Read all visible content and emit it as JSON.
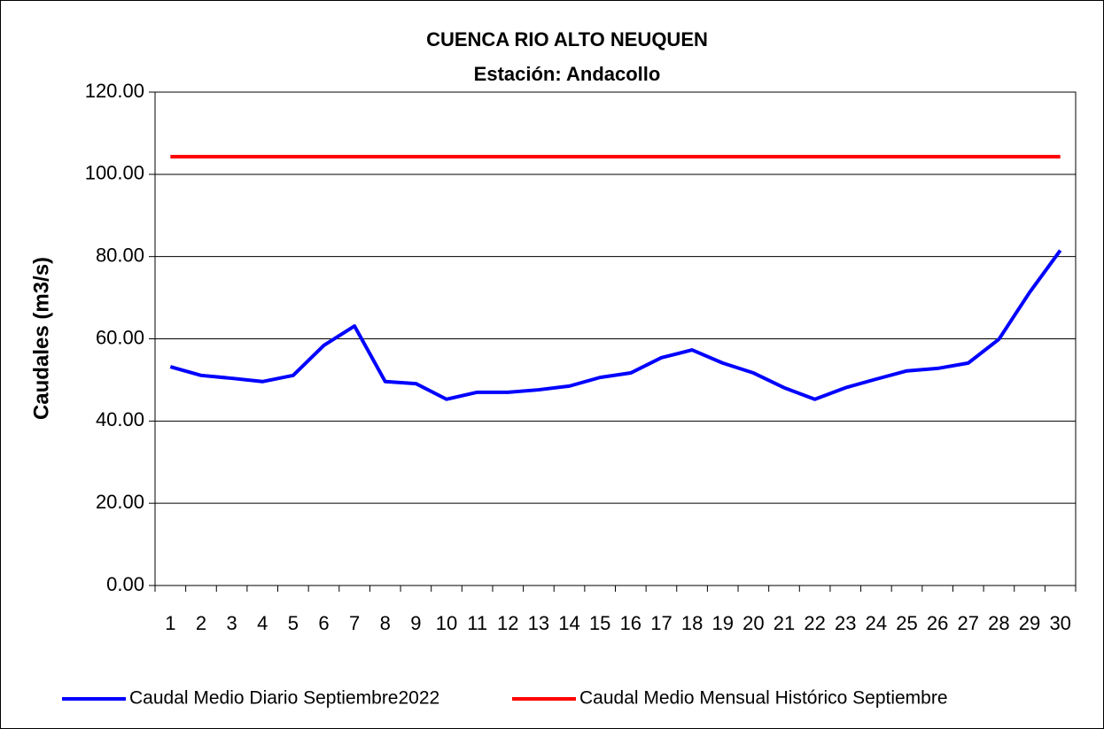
{
  "chart_data": {
    "type": "line",
    "title": "CUENCA RIO ALTO NEUQUEN",
    "subtitle": "Estación: Andacollo",
    "y_label": "Caudales (m3/s)",
    "categories": [
      "1",
      "2",
      "3",
      "4",
      "5",
      "6",
      "7",
      "8",
      "9",
      "10",
      "11",
      "12",
      "13",
      "14",
      "15",
      "16",
      "17",
      "18",
      "19",
      "20",
      "21",
      "22",
      "23",
      "24",
      "25",
      "26",
      "27",
      "28",
      "29",
      "30"
    ],
    "series": [
      {
        "name": "Caudal Medio Diario Septiembre2022",
        "color": "#0000ff",
        "values": [
          53.2,
          51.1,
          50.4,
          49.6,
          51.1,
          58.4,
          63.1,
          49.6,
          49.1,
          45.3,
          47.0,
          47.0,
          47.6,
          48.5,
          50.6,
          51.7,
          55.4,
          57.3,
          54.1,
          51.7,
          48.1,
          45.3,
          48.1,
          50.2,
          52.2,
          52.8,
          54.1,
          59.9,
          71.3,
          81.5
        ]
      },
      {
        "name": "Caudal Medio Mensual Histórico Septiembre",
        "color": "#ff0000",
        "values": [
          104.3,
          104.3,
          104.3,
          104.3,
          104.3,
          104.3,
          104.3,
          104.3,
          104.3,
          104.3,
          104.3,
          104.3,
          104.3,
          104.3,
          104.3,
          104.3,
          104.3,
          104.3,
          104.3,
          104.3,
          104.3,
          104.3,
          104.3,
          104.3,
          104.3,
          104.3,
          104.3,
          104.3,
          104.3,
          104.3
        ]
      }
    ],
    "ylim": [
      0,
      120
    ],
    "yticks": [
      {
        "value": 0,
        "label": "0.00"
      },
      {
        "value": 20,
        "label": "20.00"
      },
      {
        "value": 40,
        "label": "40.00"
      },
      {
        "value": 60,
        "label": "60.00"
      },
      {
        "value": 80,
        "label": "80.00"
      },
      {
        "value": 100,
        "label": "100.00"
      },
      {
        "value": 120,
        "label": "120.00"
      }
    ],
    "grid": true,
    "legend": "bottom"
  }
}
